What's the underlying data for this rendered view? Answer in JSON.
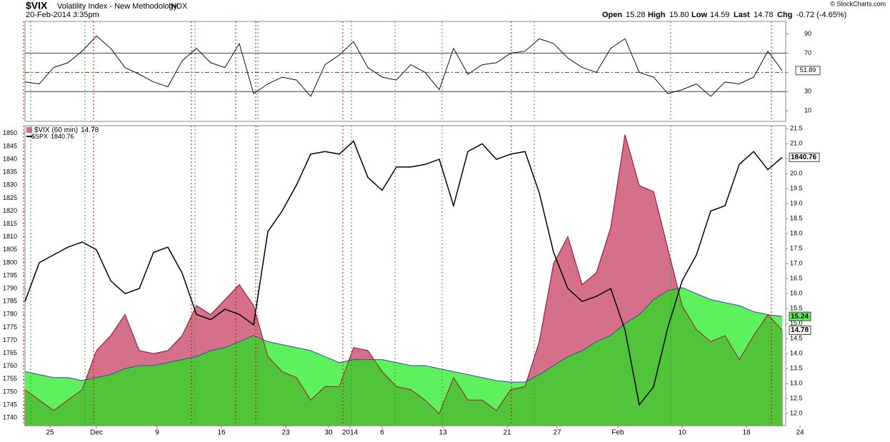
{
  "header": {
    "symbol": "$VIX",
    "name": "Volatility Index - New Methodology",
    "exchange": "INDX",
    "date": "20-Feb-2014 3:35pm",
    "open_label": "Open",
    "open": "15.28",
    "high_label": "High",
    "high": "15.80",
    "low_label": "Low",
    "low": "14.59",
    "last_label": "Last",
    "last": "14.78",
    "chg_label": "Chg",
    "chg": "-0.72 (-4.65%)",
    "credit": "© StockCharts.com"
  },
  "chart_data": [
    {
      "type": "line",
      "x": [
        0,
        4,
        8,
        12,
        16,
        20,
        24,
        28,
        32,
        36,
        40,
        44,
        48,
        52,
        56,
        60,
        64,
        68,
        72,
        76,
        80,
        84,
        88,
        92,
        96,
        100,
        104,
        108,
        112,
        116,
        120,
        124,
        128,
        132,
        136,
        140,
        144,
        148,
        152,
        156,
        160,
        164,
        168,
        172,
        176,
        180,
        184,
        188,
        192,
        196,
        200,
        204,
        208,
        212
      ],
      "series": [
        {
          "color": "#111111",
          "values": [
            40,
            38,
            55,
            60,
            72,
            88,
            75,
            55,
            48,
            40,
            35,
            62,
            75,
            60,
            55,
            80,
            28,
            38,
            45,
            42,
            25,
            58,
            68,
            82,
            55,
            45,
            42,
            58,
            50,
            32,
            75,
            48,
            58,
            60,
            70,
            72,
            85,
            80,
            65,
            55,
            50,
            75,
            85,
            50,
            45,
            28,
            32,
            38,
            25,
            40,
            38,
            45,
            72,
            51.89
          ]
        }
      ],
      "xlim": [
        0,
        218
      ],
      "ylim": [
        -1,
        103
      ],
      "yticks": [
        10,
        30,
        50,
        70,
        90
      ],
      "levels": [
        30,
        50,
        70
      ]
    },
    {
      "type": "area",
      "x": [
        0,
        4,
        8,
        12,
        16,
        20,
        24,
        28,
        32,
        36,
        40,
        44,
        48,
        52,
        56,
        60,
        64,
        68,
        72,
        76,
        80,
        84,
        88,
        92,
        96,
        100,
        104,
        108,
        112,
        116,
        120,
        124,
        128,
        132,
        136,
        140,
        144,
        148,
        152,
        156,
        160,
        164,
        168,
        172,
        176,
        180,
        184,
        188,
        192,
        196,
        200,
        204,
        208,
        212
      ],
      "series": [
        {
          "name": "$VIX (60 min)",
          "axis": "y2",
          "color": "#d4708a",
          "values": [
            12.8,
            12.45,
            12.1,
            12.45,
            12.8,
            14.1,
            14.6,
            15.3,
            14.1,
            14.0,
            14.1,
            14.6,
            15.6,
            15.3,
            15.8,
            16.3,
            15.6,
            13.9,
            13.4,
            13.2,
            12.45,
            12.9,
            12.9,
            14.2,
            14.1,
            13.4,
            12.9,
            12.8,
            12.45,
            12.0,
            13.2,
            12.45,
            12.45,
            12.1,
            12.8,
            12.9,
            14.4,
            17.0,
            17.9,
            16.3,
            16.7,
            18.2,
            21.3,
            19.6,
            19.4,
            17.5,
            15.6,
            14.8,
            14.4,
            14.6,
            13.8,
            14.6,
            15.3,
            14.78
          ]
        },
        {
          "axis": "y2",
          "color": "#5df25d",
          "values": [
            13.4,
            13.3,
            13.2,
            13.2,
            13.1,
            13.2,
            13.3,
            13.5,
            13.6,
            13.6,
            13.7,
            13.8,
            13.9,
            14.1,
            14.2,
            14.4,
            14.6,
            14.4,
            14.3,
            14.2,
            14.1,
            13.9,
            13.7,
            13.8,
            13.8,
            13.8,
            13.7,
            13.6,
            13.6,
            13.5,
            13.4,
            13.3,
            13.2,
            13.1,
            13.05,
            13.05,
            13.3,
            13.6,
            13.9,
            14.1,
            14.4,
            14.6,
            15.0,
            15.3,
            15.8,
            16.1,
            16.2,
            16.0,
            15.8,
            15.7,
            15.6,
            15.4,
            15.3,
            15.24
          ]
        },
        {
          "name": "$SPX",
          "color": "#000000",
          "values": [
            1785,
            1800,
            1803,
            1806,
            1808,
            1805,
            1793,
            1788,
            1790,
            1804,
            1806,
            1796,
            1780,
            1778,
            1782,
            1780,
            1776,
            1812,
            1820,
            1830,
            1842,
            1843,
            1842,
            1847,
            1833,
            1828,
            1837,
            1837,
            1838,
            1840,
            1822,
            1843,
            1846,
            1840,
            1842,
            1843,
            1827,
            1804,
            1790,
            1785,
            1787,
            1790,
            1774,
            1745,
            1752,
            1775,
            1793,
            1803,
            1820,
            1822,
            1838,
            1843,
            1836,
            1840.76
          ]
        }
      ],
      "xlim": [
        0,
        218
      ],
      "ylim": [
        1737,
        1853
      ],
      "yticks": [
        1740,
        1745,
        1750,
        1755,
        1760,
        1765,
        1770,
        1775,
        1780,
        1785,
        1790,
        1795,
        1800,
        1805,
        1810,
        1815,
        1820,
        1825,
        1830,
        1835,
        1840,
        1845,
        1850
      ],
      "y2lim": [
        11.6,
        21.6
      ],
      "y2ticks": [
        {
          "value": 12,
          "label": "12.0"
        },
        12.5,
        {
          "value": 13,
          "label": "13.0"
        },
        13.5,
        {
          "value": 14,
          "label": "14.0"
        },
        14.5,
        {
          "value": 15,
          "label": "15.0"
        },
        15.5,
        {
          "value": 16,
          "label": "16.0"
        },
        16.5,
        {
          "value": 17,
          "label": "17.0"
        },
        17.5,
        {
          "value": 18,
          "label": "18.0"
        },
        18.5,
        {
          "value": 19,
          "label": "19.0"
        },
        19.5,
        {
          "value": 20,
          "label": "20.0"
        },
        20.5,
        {
          "value": 21,
          "label": "21.0"
        },
        21.5
      ],
      "xticks": [
        {
          "value": 7,
          "label": "25"
        },
        {
          "value": 20,
          "label": "Dec"
        },
        {
          "value": 37,
          "label": "9"
        },
        {
          "value": 55,
          "label": "16"
        },
        {
          "value": 73,
          "label": "23"
        },
        {
          "value": 85,
          "label": "30"
        },
        {
          "value": 91,
          "label": "2014"
        },
        {
          "value": 100,
          "label": "6"
        },
        {
          "value": 117,
          "label": "13"
        },
        {
          "value": 135,
          "label": "21"
        },
        {
          "value": 149,
          "label": "27"
        },
        {
          "value": 166,
          "label": "Feb"
        },
        {
          "value": 184,
          "label": "10"
        },
        {
          "value": 202,
          "label": "18"
        },
        {
          "value": 217,
          "label": "24"
        }
      ]
    }
  ]
}
